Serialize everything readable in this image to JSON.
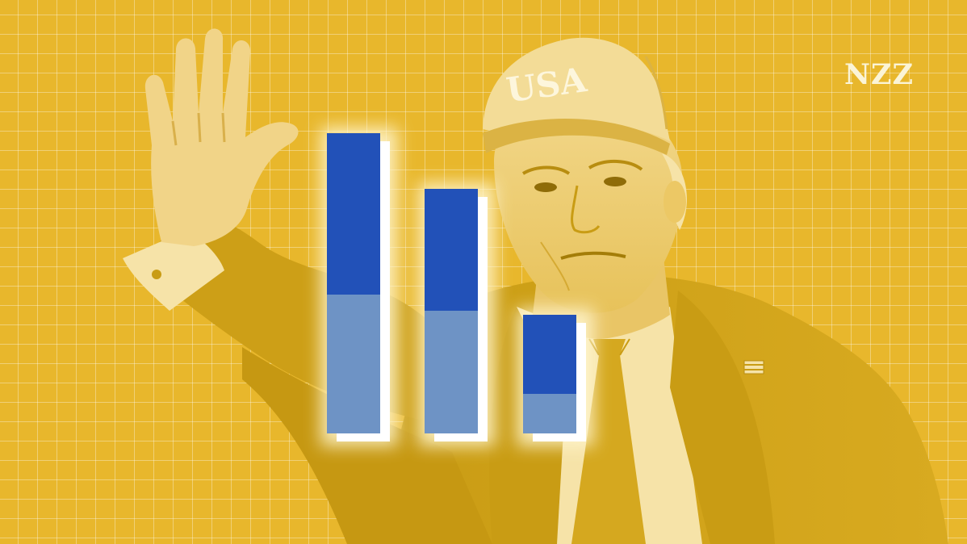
{
  "brand": {
    "logo_text": "NZZ"
  },
  "photo": {
    "subject": "waving-man-in-cap",
    "cap_text": "USA"
  },
  "colors": {
    "background": "#e8b72c",
    "grid": "#f5d98a",
    "bar_dark": "#2251b8",
    "bar_light": "#6e93c5",
    "bar_shadow": "#ffffff",
    "figure_dark": "#c79a10",
    "figure_light": "#f6e3a8"
  },
  "chart_data": {
    "type": "bar",
    "stacked": true,
    "title": "",
    "xlabel": "",
    "ylabel": "",
    "axes_visible": false,
    "categories": [
      "",
      "",
      ""
    ],
    "series": [
      {
        "values": [
          200,
          151,
          98
        ]
      },
      {
        "values": [
          172,
          152,
          49
        ]
      }
    ],
    "ylim": [
      0,
      372
    ]
  }
}
